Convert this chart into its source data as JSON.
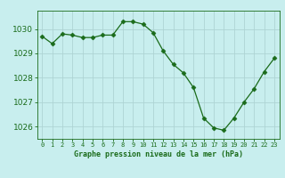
{
  "x": [
    0,
    1,
    2,
    3,
    4,
    5,
    6,
    7,
    8,
    9,
    10,
    11,
    12,
    13,
    14,
    15,
    16,
    17,
    18,
    19,
    20,
    21,
    22,
    23
  ],
  "y": [
    1029.7,
    1029.4,
    1029.8,
    1029.75,
    1029.65,
    1029.65,
    1029.75,
    1029.75,
    1030.3,
    1030.3,
    1030.2,
    1029.85,
    1029.1,
    1028.55,
    1028.2,
    1027.6,
    1026.35,
    1025.95,
    1025.85,
    1026.35,
    1027.0,
    1027.55,
    1028.25,
    1028.8
  ],
  "line_color": "#1a6b1a",
  "marker": "D",
  "marker_size": 2.5,
  "bg_color": "#c8eeee",
  "grid_color": "#aed4d4",
  "title": "Graphe pression niveau de la mer (hPa)",
  "title_color": "#1a6b1a",
  "tick_color": "#1a6b1a",
  "ylim": [
    1025.5,
    1030.75
  ],
  "yticks": [
    1026,
    1027,
    1028,
    1029,
    1030
  ],
  "xlim": [
    -0.5,
    23.5
  ],
  "xtick_labels": [
    "0",
    "1",
    "2",
    "3",
    "4",
    "5",
    "6",
    "7",
    "8",
    "9",
    "10",
    "11",
    "12",
    "13",
    "14",
    "15",
    "16",
    "17",
    "18",
    "19",
    "20",
    "21",
    "22",
    "23"
  ]
}
